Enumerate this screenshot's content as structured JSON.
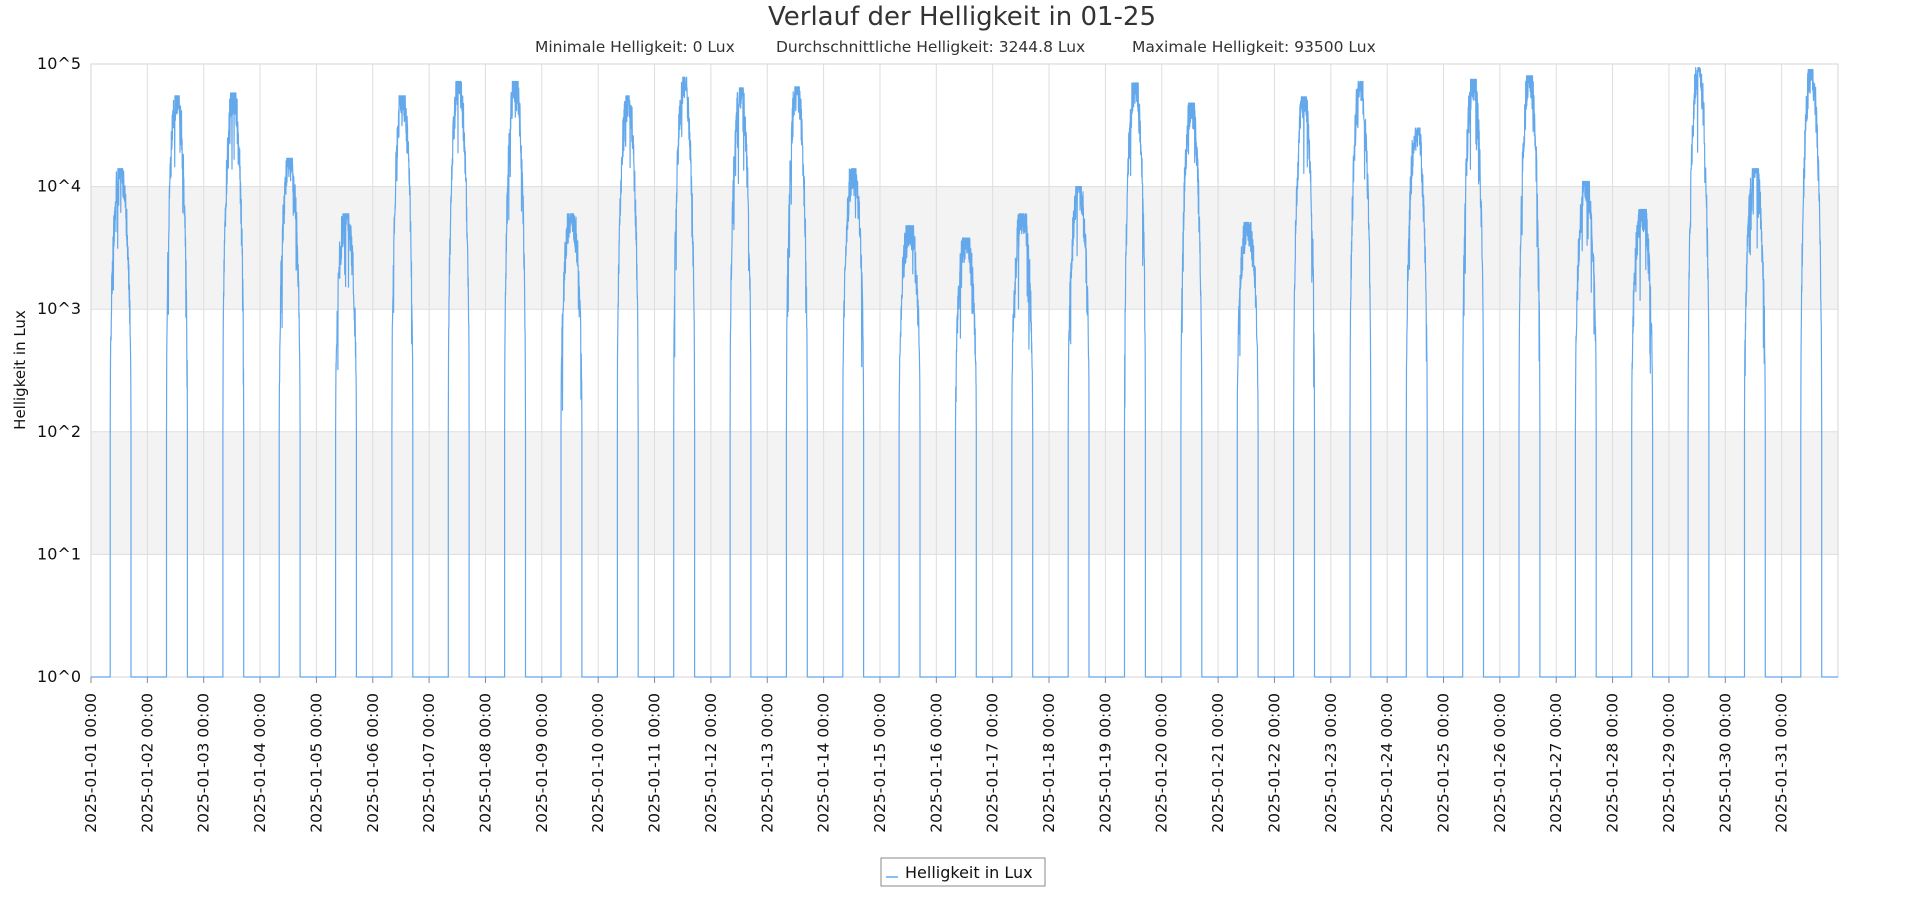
{
  "chart_data": {
    "type": "line",
    "title": "Verlauf der Helligkeit in 01-25",
    "subtitle": {
      "min": "Minimale Helligkeit: 0 Lux",
      "avg": "Durchschnittliche Helligkeit: 3244.8 Lux",
      "max": "Maximale Helligkeit: 93500 Lux"
    },
    "ylabel": "Helligkeit in Lux",
    "xlabel": "",
    "y_scale": "log10",
    "ylim": [
      1,
      100000
    ],
    "y_ticks": [
      "10^0",
      "10^1",
      "10^2",
      "10^3",
      "10^4",
      "10^5"
    ],
    "x_range": [
      "2025-01-01 00:00",
      "2025-02-01 00:00"
    ],
    "x_ticks": [
      "2025-01-01 00:00",
      "2025-01-02 00:00",
      "2025-01-03 00:00",
      "2025-01-04 00:00",
      "2025-01-05 00:00",
      "2025-01-06 00:00",
      "2025-01-07 00:00",
      "2025-01-08 00:00",
      "2025-01-09 00:00",
      "2025-01-10 00:00",
      "2025-01-11 00:00",
      "2025-01-12 00:00",
      "2025-01-13 00:00",
      "2025-01-14 00:00",
      "2025-01-15 00:00",
      "2025-01-16 00:00",
      "2025-01-17 00:00",
      "2025-01-18 00:00",
      "2025-01-19 00:00",
      "2025-01-20 00:00",
      "2025-01-21 00:00",
      "2025-01-22 00:00",
      "2025-01-23 00:00",
      "2025-01-24 00:00",
      "2025-01-25 00:00",
      "2025-01-26 00:00",
      "2025-01-27 00:00",
      "2025-01-28 00:00",
      "2025-01-29 00:00",
      "2025-01-30 00:00",
      "2025-01-31 00:00"
    ],
    "grid": true,
    "alternating_bands": true,
    "legend": {
      "placement": "bottom-center"
    },
    "series": [
      {
        "name": "Helligkeit in Lux",
        "color": "#64a8ec",
        "daily_peaks": [
          {
            "date": "2025-01-01",
            "peak": 14000
          },
          {
            "date": "2025-01-02",
            "peak": 55000
          },
          {
            "date": "2025-01-03",
            "peak": 58000
          },
          {
            "date": "2025-01-04",
            "peak": 17000
          },
          {
            "date": "2025-01-05",
            "peak": 6000
          },
          {
            "date": "2025-01-06",
            "peak": 55000
          },
          {
            "date": "2025-01-07",
            "peak": 72000
          },
          {
            "date": "2025-01-08",
            "peak": 72000
          },
          {
            "date": "2025-01-09",
            "peak": 6000
          },
          {
            "date": "2025-01-10",
            "peak": 55000
          },
          {
            "date": "2025-01-11",
            "peak": 78000
          },
          {
            "date": "2025-01-12",
            "peak": 64000
          },
          {
            "date": "2025-01-13",
            "peak": 65000
          },
          {
            "date": "2025-01-14",
            "peak": 14000
          },
          {
            "date": "2025-01-15",
            "peak": 4800
          },
          {
            "date": "2025-01-16",
            "peak": 3800
          },
          {
            "date": "2025-01-17",
            "peak": 6000
          },
          {
            "date": "2025-01-18",
            "peak": 10000
          },
          {
            "date": "2025-01-19",
            "peak": 70000
          },
          {
            "date": "2025-01-20",
            "peak": 48000
          },
          {
            "date": "2025-01-21",
            "peak": 5100
          },
          {
            "date": "2025-01-22",
            "peak": 54000
          },
          {
            "date": "2025-01-23",
            "peak": 72000
          },
          {
            "date": "2025-01-24",
            "peak": 30000
          },
          {
            "date": "2025-01-25",
            "peak": 75000
          },
          {
            "date": "2025-01-26",
            "peak": 80000
          },
          {
            "date": "2025-01-27",
            "peak": 11000
          },
          {
            "date": "2025-01-28",
            "peak": 6500
          },
          {
            "date": "2025-01-29",
            "peak": 93500
          },
          {
            "date": "2025-01-30",
            "peak": 14000
          },
          {
            "date": "2025-01-31",
            "peak": 90000
          }
        ]
      }
    ]
  }
}
